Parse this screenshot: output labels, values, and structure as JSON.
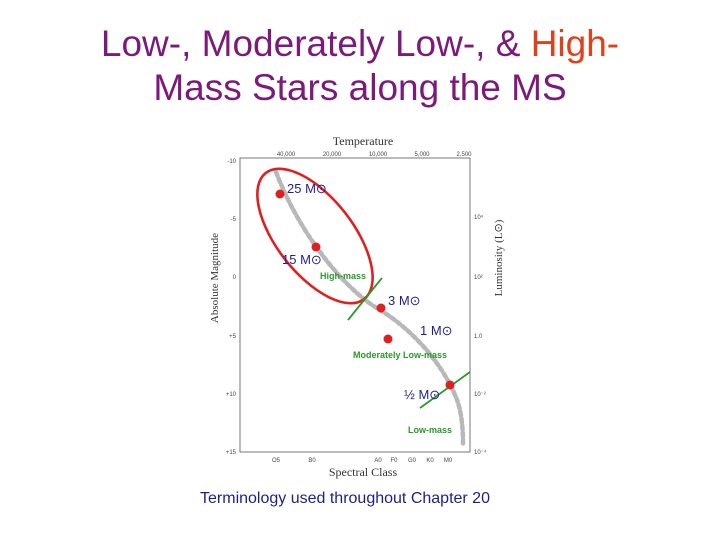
{
  "slide": {
    "title_line1_part1": "Low-, Moderately Low-, & ",
    "title_line1_part2": "High-",
    "title_line2": "Mass Stars along the MS",
    "caption": "Terminology used throughout Chapter 20"
  },
  "diagram": {
    "top_axis_label": "Temperature",
    "bottom_axis_label": "Spectral Class",
    "left_axis_label": "Absolute Magnitude",
    "right_axis_label": "Luminosity (L⊙)",
    "temperature_ticks": [
      "40,000",
      "20,000",
      "10,000",
      "5,000",
      "2,500"
    ],
    "spectral_ticks": [
      "O5",
      "B0",
      "A0",
      "F0",
      "G0",
      "K0",
      "M0"
    ],
    "magnitude_ticks": [
      "-10",
      "-5",
      "0",
      "+5",
      "+10",
      "+15"
    ],
    "luminosity_ticks": [
      "10⁴",
      "10²",
      "1.0",
      "10⁻²",
      "10⁻⁴"
    ],
    "stars": [
      {
        "label": "25 M⊙"
      },
      {
        "label": "15 M⊙"
      },
      {
        "label": "3 M⊙"
      },
      {
        "label": "1 M⊙"
      },
      {
        "label": "½ M⊙"
      }
    ],
    "regions": {
      "high": "High-mass",
      "moderate": "Moderately Low-mass",
      "low": "Low-mass"
    },
    "colors": {
      "star": "#e02020",
      "ellipse": "#e02020",
      "divider": "#2a9a2a",
      "main_sequence": "#b8b8b8",
      "title": "#7b1a7b",
      "title_highlight": "#e0401a",
      "caption": "#1f1f8a"
    }
  }
}
